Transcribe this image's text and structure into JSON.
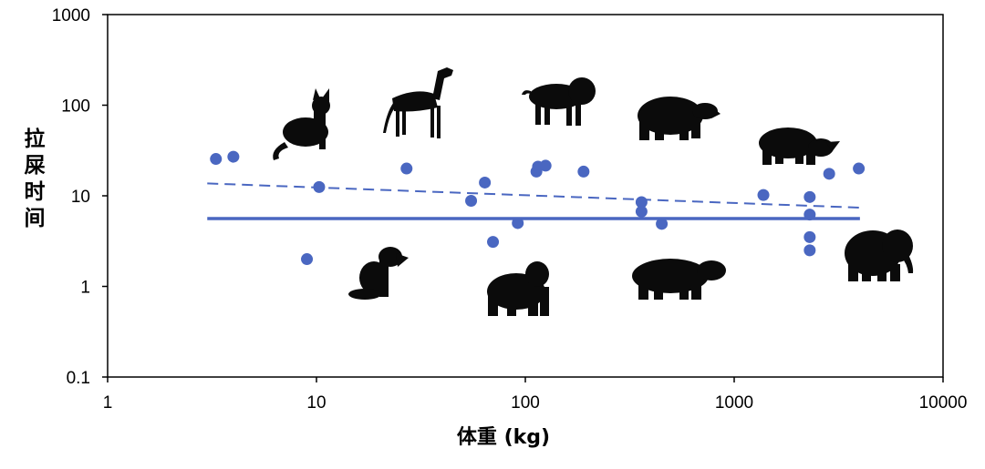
{
  "chart_data": {
    "type": "scatter",
    "title": "",
    "xlabel": "体重 (kg)",
    "ylabel": "拉屎时间",
    "xscale": "log",
    "yscale": "log",
    "xlim": [
      1,
      10000
    ],
    "ylim": [
      0.1,
      1000
    ],
    "x_tick_labels": [
      "1",
      "10",
      "100",
      "1000",
      "10000"
    ],
    "y_tick_labels": [
      "0.1",
      "1",
      "10",
      "100",
      "1000"
    ],
    "grid": false,
    "legend": "none",
    "color": "#4a67c1",
    "points": [
      {
        "x": 3.3,
        "y": 25.5
      },
      {
        "x": 4.0,
        "y": 27
      },
      {
        "x": 9.0,
        "y": 2.0
      },
      {
        "x": 10.3,
        "y": 12.5
      },
      {
        "x": 27,
        "y": 20
      },
      {
        "x": 55,
        "y": 8.8
      },
      {
        "x": 64,
        "y": 14
      },
      {
        "x": 70,
        "y": 3.1
      },
      {
        "x": 92,
        "y": 5.0
      },
      {
        "x": 113,
        "y": 18.5
      },
      {
        "x": 115,
        "y": 21
      },
      {
        "x": 125,
        "y": 21.5
      },
      {
        "x": 190,
        "y": 18.5
      },
      {
        "x": 360,
        "y": 8.5
      },
      {
        "x": 360,
        "y": 6.7
      },
      {
        "x": 450,
        "y": 4.9
      },
      {
        "x": 1380,
        "y": 10.2
      },
      {
        "x": 2300,
        "y": 9.7
      },
      {
        "x": 2300,
        "y": 6.2
      },
      {
        "x": 2300,
        "y": 3.5
      },
      {
        "x": 2300,
        "y": 2.5
      },
      {
        "x": 2850,
        "y": 17.5
      },
      {
        "x": 3950,
        "y": 20
      }
    ],
    "lines": [
      {
        "name": "dashed fit",
        "style": "dashed",
        "x": [
          3,
          4000
        ],
        "y": [
          13.7,
          7.4
        ]
      },
      {
        "name": "solid mean",
        "style": "solid",
        "x": [
          3,
          4000
        ],
        "y": [
          5.6,
          5.6
        ]
      }
    ],
    "annotations": [
      "cat-icon",
      "greyhound-icon",
      "lion-icon",
      "bear-icon",
      "rhino-icon",
      "dog-icon",
      "gorilla-icon",
      "hippo-icon",
      "elephant-icon"
    ]
  }
}
